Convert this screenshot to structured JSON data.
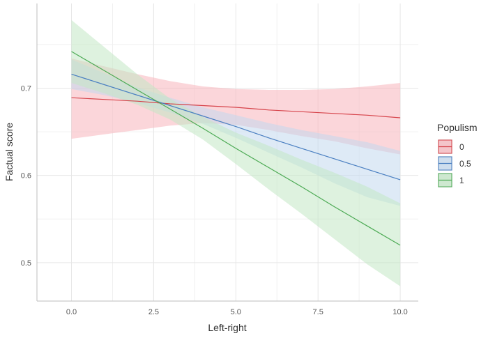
{
  "chart_data": {
    "type": "line",
    "title": "",
    "xlabel": "Left-right",
    "ylabel": "Factual score",
    "xlim": [
      -1.05,
      10.55
    ],
    "ylim": [
      0.456,
      0.797
    ],
    "x_ticks": [
      0,
      2.5,
      5,
      7.5,
      10
    ],
    "x_tick_labels": [
      "0.0",
      "2.5",
      "5.0",
      "7.5",
      "10.0"
    ],
    "y_ticks": [
      0.5,
      0.6,
      0.7
    ],
    "y_tick_labels": [
      "0.5",
      "0.6",
      "0.7"
    ],
    "grid": true,
    "legend": {
      "title": "Populism",
      "position": "right"
    },
    "series": [
      {
        "name": "0",
        "color": "#d6434a",
        "fill": "#f8b5bc",
        "x": [
          0,
          1,
          2,
          3,
          4,
          5,
          6,
          7,
          8,
          9,
          10
        ],
        "y": [
          0.689,
          0.687,
          0.685,
          0.682,
          0.68,
          0.678,
          0.675,
          0.673,
          0.671,
          0.669,
          0.666
        ],
        "lower": [
          0.642,
          0.647,
          0.652,
          0.657,
          0.66,
          0.658,
          0.652,
          0.645,
          0.639,
          0.631,
          0.624
        ],
        "upper": [
          0.734,
          0.725,
          0.716,
          0.708,
          0.702,
          0.699,
          0.698,
          0.698,
          0.699,
          0.702,
          0.706
        ]
      },
      {
        "name": "0.5",
        "color": "#4a7fc1",
        "fill": "#c2d9ef",
        "x": [
          0,
          1,
          2,
          3,
          4,
          5,
          6,
          7,
          8,
          9,
          10
        ],
        "y": [
          0.716,
          0.704,
          0.692,
          0.68,
          0.668,
          0.656,
          0.643,
          0.631,
          0.619,
          0.607,
          0.595
        ],
        "lower": [
          0.699,
          0.692,
          0.683,
          0.672,
          0.659,
          0.643,
          0.626,
          0.609,
          0.591,
          0.575,
          0.565
        ],
        "upper": [
          0.733,
          0.717,
          0.701,
          0.689,
          0.678,
          0.669,
          0.66,
          0.652,
          0.645,
          0.638,
          0.628
        ]
      },
      {
        "name": "1",
        "color": "#4caa54",
        "fill": "#c2e7c4",
        "x": [
          0,
          1,
          2,
          3,
          4,
          5,
          6,
          7,
          8,
          9,
          10
        ],
        "y": [
          0.742,
          0.72,
          0.698,
          0.676,
          0.654,
          0.631,
          0.609,
          0.587,
          0.564,
          0.542,
          0.52
        ],
        "lower": [
          0.706,
          0.694,
          0.681,
          0.664,
          0.641,
          0.613,
          0.584,
          0.556,
          0.527,
          0.498,
          0.473
        ],
        "upper": [
          0.778,
          0.747,
          0.716,
          0.688,
          0.667,
          0.649,
          0.634,
          0.618,
          0.603,
          0.587,
          0.568
        ]
      }
    ]
  }
}
